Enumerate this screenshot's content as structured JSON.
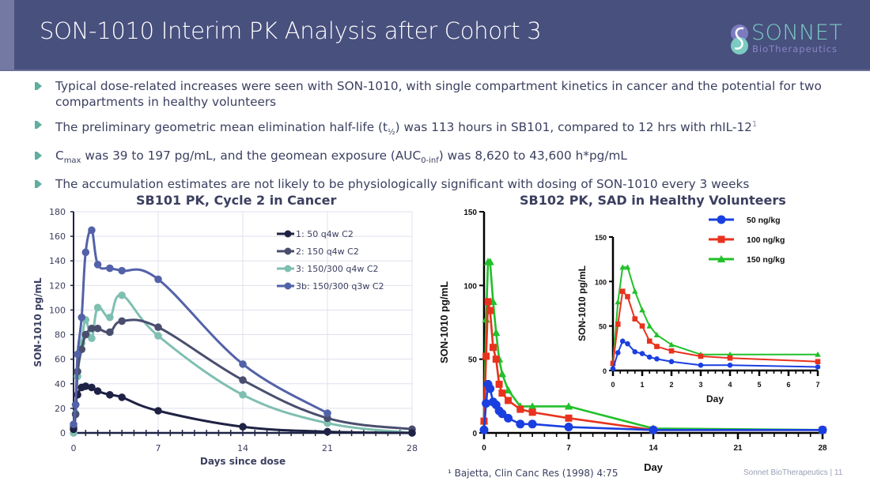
{
  "header": {
    "title": "SON-1010 Interim PK Analysis after Cohort 3",
    "logo_name": "SONNET",
    "logo_sub": "BioTherapeutics"
  },
  "bullets": [
    {
      "text": "Typical dose-related increases were seen with SON-1010, with single compartment kinetics in cancer and the potential for two compartments in healthy volunteers"
    },
    {
      "pre": "The preliminary geometric mean elimination half-life (t",
      "sub": "½",
      "post": ") was 113 hours in SB101, compared to 12 hrs with rhIL-12",
      "sup": "1"
    },
    {
      "pre": "C",
      "sub": "max",
      "mid": " was 39 to 197 pg/mL, and the geomean exposure (AUC",
      "sub2": "0-inf",
      "post": ") was 8,620 to 43,600 h*pg/mL"
    },
    {
      "text": "The accumulation estimates are not likely to be physiologically significant with dosing of SON-1010 every 3 weeks"
    }
  ],
  "footnote": "¹ Bajetta, Clin Canc Res (1998) 4:75",
  "page_footer": "Sonnet BioTherapeutics | 11",
  "chart_data": [
    {
      "type": "line",
      "title": "SB101 PK, Cycle 2 in Cancer",
      "xlabel": "Days since dose",
      "ylabel": "SON-1010 pg/mL",
      "xlim": [
        0,
        28
      ],
      "ylim": [
        0,
        180
      ],
      "xticks": [
        0,
        7,
        14,
        21,
        28
      ],
      "yticks": [
        0,
        20,
        40,
        60,
        80,
        100,
        120,
        140,
        160,
        180
      ],
      "grid": true,
      "legend": "top-right",
      "series": [
        {
          "name": "1: 50 q4w C2",
          "color": "#1f2244",
          "x": [
            0,
            0.17,
            0.33,
            0.67,
            1,
            1.5,
            2,
            3,
            4,
            7,
            14,
            21,
            28
          ],
          "y": [
            3,
            23,
            31,
            37,
            38,
            37,
            34,
            31,
            29,
            18,
            5,
            1,
            0
          ]
        },
        {
          "name": "2: 150 q4w C2",
          "color": "#4a4e6e",
          "x": [
            0,
            0.17,
            0.33,
            0.67,
            1,
            1.5,
            2,
            3,
            4,
            7,
            14,
            21,
            28
          ],
          "y": [
            5,
            15,
            50,
            68,
            80,
            85,
            85,
            82,
            91,
            86,
            43,
            12,
            3
          ]
        },
        {
          "name": "3: 150/300 q4w C2",
          "color": "#7fbfb1",
          "x": [
            0,
            0.17,
            0.33,
            0.67,
            1,
            1.5,
            2,
            3,
            4,
            7,
            14,
            21,
            28
          ],
          "y": [
            0,
            16,
            46,
            73,
            92,
            77,
            102,
            94,
            112,
            79,
            31,
            8,
            0
          ]
        },
        {
          "name": "3b: 150/300 q3w C2",
          "color": "#5362a8",
          "x": [
            0,
            0.17,
            0.33,
            0.67,
            1,
            1.5,
            2,
            3,
            4,
            7,
            14,
            21
          ],
          "y": [
            7,
            23,
            64,
            94,
            147,
            165,
            137,
            134,
            132,
            125,
            56,
            16
          ]
        }
      ]
    },
    {
      "type": "line",
      "title": "SB102 PK, SAD in Healthy Volunteers",
      "xlabel": "Day",
      "ylabel": "SON-1010 pg/mL",
      "xlim": [
        0,
        28
      ],
      "ylim": [
        0,
        150
      ],
      "xticks": [
        0,
        7,
        14,
        21,
        28
      ],
      "yticks": [
        0,
        50,
        100,
        150
      ],
      "grid": false,
      "legend": "top-right",
      "series": [
        {
          "name": "50 ng/kg",
          "color": "#1a3fe0",
          "marker": "circle",
          "x": [
            0,
            0.17,
            0.33,
            0.5,
            0.75,
            1,
            1.25,
            1.5,
            2,
            3,
            4,
            7,
            14,
            28
          ],
          "y": [
            2,
            20,
            33,
            30,
            21,
            19,
            15,
            13,
            10,
            6,
            6,
            4,
            2,
            2
          ]
        },
        {
          "name": "100 ng/kg",
          "color": "#e8321e",
          "marker": "square",
          "x": [
            0,
            0.17,
            0.33,
            0.5,
            0.75,
            1,
            1.25,
            1.5,
            2,
            3,
            4,
            7,
            14,
            28
          ],
          "y": [
            8,
            52,
            89,
            83,
            58,
            50,
            33,
            27,
            22,
            16,
            14,
            10,
            2,
            2
          ]
        },
        {
          "name": "150 ng/kg",
          "color": "#22c02a",
          "marker": "triangle",
          "x": [
            0,
            0.17,
            0.33,
            0.5,
            0.75,
            1,
            1.25,
            1.5,
            2,
            3,
            4,
            7,
            14,
            28
          ],
          "y": [
            8,
            77,
            116,
            116,
            89,
            68,
            50,
            40,
            29,
            18,
            18,
            18,
            3,
            2
          ]
        }
      ],
      "inset": {
        "xlabel": "Day",
        "ylabel": "SON-1010 pg/mL",
        "xlim": [
          0,
          7
        ],
        "ylim": [
          0,
          150
        ],
        "xticks": [
          0,
          1,
          2,
          3,
          4,
          5,
          6,
          7
        ],
        "yticks": [
          0,
          50,
          100,
          150
        ],
        "series_ref": "same as parent, x within 0-7"
      }
    }
  ]
}
